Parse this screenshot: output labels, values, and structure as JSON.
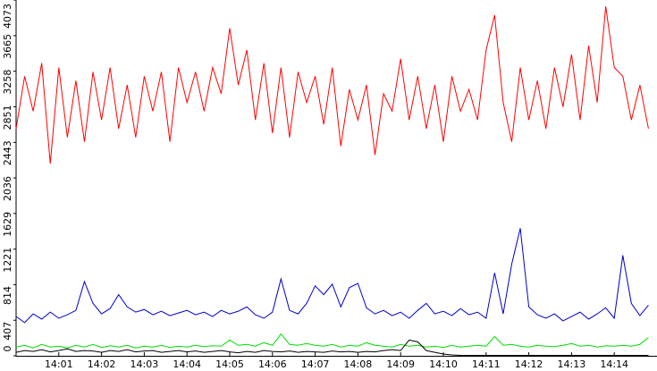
{
  "chart_data": {
    "type": "line",
    "x": [
      0,
      0.2,
      0.4,
      0.6,
      0.8,
      1,
      1.2,
      1.4,
      1.6,
      1.8,
      2,
      2.2,
      2.4,
      2.6,
      2.8,
      3,
      3.2,
      3.4,
      3.6,
      3.8,
      4,
      4.2,
      4.4,
      4.6,
      4.8,
      5,
      5.2,
      5.4,
      5.6,
      5.8,
      6,
      6.2,
      6.4,
      6.6,
      6.8,
      7,
      7.2,
      7.4,
      7.6,
      7.8,
      8,
      8.2,
      8.4,
      8.6,
      8.8,
      9,
      9.2,
      9.4,
      9.6,
      9.8,
      10,
      10.2,
      10.4,
      10.6,
      10.8,
      11,
      11.2,
      11.4,
      11.6,
      11.8,
      12,
      12.2,
      12.4,
      12.6,
      12.8,
      13,
      13.2,
      13.4,
      13.6,
      13.8,
      14,
      14.2,
      14.4,
      14.6,
      14.8
    ],
    "series": [
      {
        "color": "#ff0000",
        "values": [
          2600,
          3200,
          2800,
          3350,
          2200,
          3300,
          2500,
          3150,
          2450,
          3250,
          2700,
          3300,
          2600,
          3100,
          2500,
          3200,
          2800,
          3250,
          2450,
          3300,
          2900,
          3250,
          2800,
          3300,
          3000,
          3750,
          3100,
          3500,
          2700,
          3350,
          2550,
          3300,
          2500,
          3250,
          2900,
          3200,
          2650,
          3300,
          2400,
          3050,
          2700,
          3100,
          2300,
          3000,
          2800,
          3400,
          2700,
          3200,
          2600,
          3100,
          2450,
          3200,
          2800,
          3050,
          2700,
          3500,
          3900,
          2900,
          2450,
          3300,
          2700,
          3150,
          2600,
          3300,
          2850,
          3450,
          2700,
          3550,
          2900,
          4000,
          3300,
          3200,
          2700,
          3100,
          2600
        ]
      },
      {
        "color": "#0000cc",
        "values": [
          450,
          380,
          480,
          420,
          500,
          430,
          470,
          520,
          850,
          600,
          480,
          540,
          700,
          560,
          500,
          530,
          470,
          510,
          460,
          490,
          520,
          470,
          500,
          450,
          520,
          480,
          510,
          560,
          470,
          430,
          500,
          880,
          520,
          480,
          600,
          800,
          700,
          820,
          560,
          780,
          830,
          550,
          480,
          520,
          460,
          500,
          430,
          520,
          600,
          480,
          510,
          460,
          540,
          470,
          500,
          430,
          950,
          480,
          1050,
          1460,
          560,
          470,
          430,
          480,
          400,
          450,
          500,
          420,
          480,
          550,
          430,
          1150,
          600,
          460,
          580
        ]
      },
      {
        "color": "#00dd00",
        "values": [
          100,
          120,
          90,
          130,
          100,
          110,
          90,
          120,
          100,
          130,
          95,
          115,
          100,
          120,
          90,
          110,
          100,
          120,
          95,
          110,
          100,
          120,
          105,
          115,
          110,
          180,
          120,
          130,
          110,
          150,
          120,
          250,
          130,
          120,
          140,
          120,
          110,
          130,
          100,
          120,
          110,
          150,
          120,
          110,
          100,
          130,
          110,
          120,
          100,
          110,
          95,
          120,
          100,
          110,
          120,
          110,
          220,
          120,
          130,
          110,
          100,
          120,
          110,
          105,
          120,
          140,
          110,
          120,
          100,
          115,
          110,
          120,
          110,
          130,
          210
        ]
      },
      {
        "color": "#000000",
        "values": [
          40,
          60,
          50,
          70,
          45,
          60,
          80,
          50,
          60,
          55,
          40,
          60,
          50,
          70,
          45,
          55,
          60,
          40,
          50,
          60,
          45,
          55,
          40,
          50,
          60,
          45,
          35,
          50,
          40,
          60,
          50,
          45,
          55,
          40,
          50,
          45,
          40,
          55,
          45,
          50,
          40,
          50,
          45,
          60,
          70,
          60,
          180,
          160,
          60,
          40,
          20,
          10,
          5,
          5,
          5,
          5,
          5,
          5,
          5,
          5,
          5,
          5,
          5,
          5,
          5,
          5,
          5,
          5,
          5,
          5,
          5,
          5,
          5,
          5,
          5
        ]
      }
    ],
    "xlim": [
      0,
      15
    ],
    "xticks": [
      {
        "value": 1,
        "label": "14:01"
      },
      {
        "value": 2,
        "label": "14:02"
      },
      {
        "value": 3,
        "label": "14:03"
      },
      {
        "value": 4,
        "label": "14:04"
      },
      {
        "value": 5,
        "label": "14:05"
      },
      {
        "value": 6,
        "label": "14:06"
      },
      {
        "value": 7,
        "label": "14:07"
      },
      {
        "value": 8,
        "label": "14:08"
      },
      {
        "value": 9,
        "label": "14:09"
      },
      {
        "value": 10,
        "label": "14:10"
      },
      {
        "value": 11,
        "label": "14:11"
      },
      {
        "value": 12,
        "label": "14:12"
      },
      {
        "value": 13,
        "label": "14:13"
      },
      {
        "value": 14,
        "label": "14:14"
      }
    ],
    "ylim": [
      0,
      4073
    ],
    "yticks": [
      0,
      407,
      814,
      1221,
      1629,
      2036,
      2443,
      2851,
      3258,
      3665,
      4073
    ]
  }
}
